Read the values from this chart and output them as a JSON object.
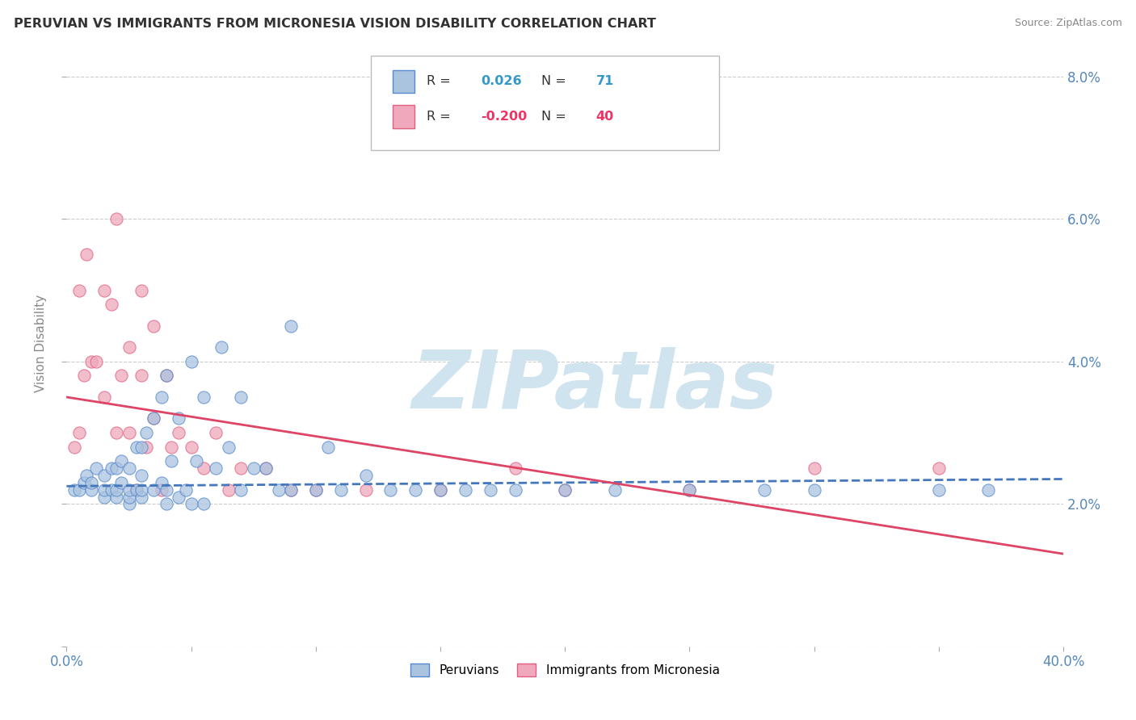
{
  "title": "PERUVIAN VS IMMIGRANTS FROM MICRONESIA VISION DISABILITY CORRELATION CHART",
  "source": "Source: ZipAtlas.com",
  "ylabel": "Vision Disability",
  "xlim": [
    0.0,
    0.4
  ],
  "ylim": [
    0.0,
    0.085
  ],
  "xticks": [
    0.0,
    0.05,
    0.1,
    0.15,
    0.2,
    0.25,
    0.3,
    0.35,
    0.4
  ],
  "yticks": [
    0.0,
    0.02,
    0.04,
    0.06,
    0.08
  ],
  "right_ytick_labels": [
    "",
    "2.0%",
    "4.0%",
    "6.0%",
    "8.0%"
  ],
  "blue_R": 0.026,
  "blue_N": 71,
  "pink_R": -0.2,
  "pink_N": 40,
  "blue_color": "#aac4e0",
  "pink_color": "#f0a8bc",
  "blue_edge_color": "#5588cc",
  "pink_edge_color": "#e06080",
  "blue_line_color": "#4477bb",
  "pink_line_color": "#dd4466",
  "watermark_color": "#d0e4f0",
  "background_color": "#ffffff",
  "grid_color": "#cccccc",
  "blue_scatter_x": [
    0.003,
    0.005,
    0.007,
    0.008,
    0.01,
    0.01,
    0.012,
    0.015,
    0.015,
    0.015,
    0.018,
    0.018,
    0.02,
    0.02,
    0.02,
    0.022,
    0.022,
    0.025,
    0.025,
    0.025,
    0.025,
    0.028,
    0.028,
    0.03,
    0.03,
    0.03,
    0.03,
    0.032,
    0.035,
    0.035,
    0.038,
    0.038,
    0.04,
    0.04,
    0.04,
    0.042,
    0.045,
    0.045,
    0.048,
    0.05,
    0.05,
    0.052,
    0.055,
    0.055,
    0.06,
    0.062,
    0.065,
    0.07,
    0.07,
    0.075,
    0.08,
    0.085,
    0.09,
    0.09,
    0.1,
    0.105,
    0.11,
    0.12,
    0.13,
    0.14,
    0.15,
    0.16,
    0.17,
    0.18,
    0.2,
    0.22,
    0.25,
    0.28,
    0.3,
    0.35,
    0.37
  ],
  "blue_scatter_y": [
    0.022,
    0.022,
    0.023,
    0.024,
    0.022,
    0.023,
    0.025,
    0.021,
    0.022,
    0.024,
    0.022,
    0.025,
    0.021,
    0.022,
    0.025,
    0.023,
    0.026,
    0.02,
    0.021,
    0.022,
    0.025,
    0.022,
    0.028,
    0.021,
    0.022,
    0.024,
    0.028,
    0.03,
    0.022,
    0.032,
    0.023,
    0.035,
    0.02,
    0.022,
    0.038,
    0.026,
    0.021,
    0.032,
    0.022,
    0.02,
    0.04,
    0.026,
    0.02,
    0.035,
    0.025,
    0.042,
    0.028,
    0.022,
    0.035,
    0.025,
    0.025,
    0.022,
    0.022,
    0.045,
    0.022,
    0.028,
    0.022,
    0.024,
    0.022,
    0.022,
    0.022,
    0.022,
    0.022,
    0.022,
    0.022,
    0.022,
    0.022,
    0.022,
    0.022,
    0.022,
    0.022
  ],
  "pink_scatter_x": [
    0.003,
    0.005,
    0.005,
    0.007,
    0.008,
    0.01,
    0.012,
    0.015,
    0.015,
    0.018,
    0.02,
    0.02,
    0.022,
    0.025,
    0.025,
    0.028,
    0.03,
    0.03,
    0.032,
    0.035,
    0.035,
    0.038,
    0.04,
    0.042,
    0.045,
    0.05,
    0.055,
    0.06,
    0.065,
    0.07,
    0.08,
    0.09,
    0.1,
    0.12,
    0.15,
    0.18,
    0.2,
    0.25,
    0.3,
    0.35
  ],
  "pink_scatter_y": [
    0.028,
    0.03,
    0.05,
    0.038,
    0.055,
    0.04,
    0.04,
    0.035,
    0.05,
    0.048,
    0.03,
    0.06,
    0.038,
    0.03,
    0.042,
    0.022,
    0.038,
    0.05,
    0.028,
    0.032,
    0.045,
    0.022,
    0.038,
    0.028,
    0.03,
    0.028,
    0.025,
    0.03,
    0.022,
    0.025,
    0.025,
    0.022,
    0.022,
    0.022,
    0.022,
    0.025,
    0.022,
    0.022,
    0.025,
    0.025
  ],
  "blue_trend_x": [
    0.0,
    0.4
  ],
  "blue_trend_y": [
    0.0225,
    0.0235
  ],
  "pink_trend_x": [
    0.0,
    0.4
  ],
  "pink_trend_y": [
    0.035,
    0.013
  ]
}
